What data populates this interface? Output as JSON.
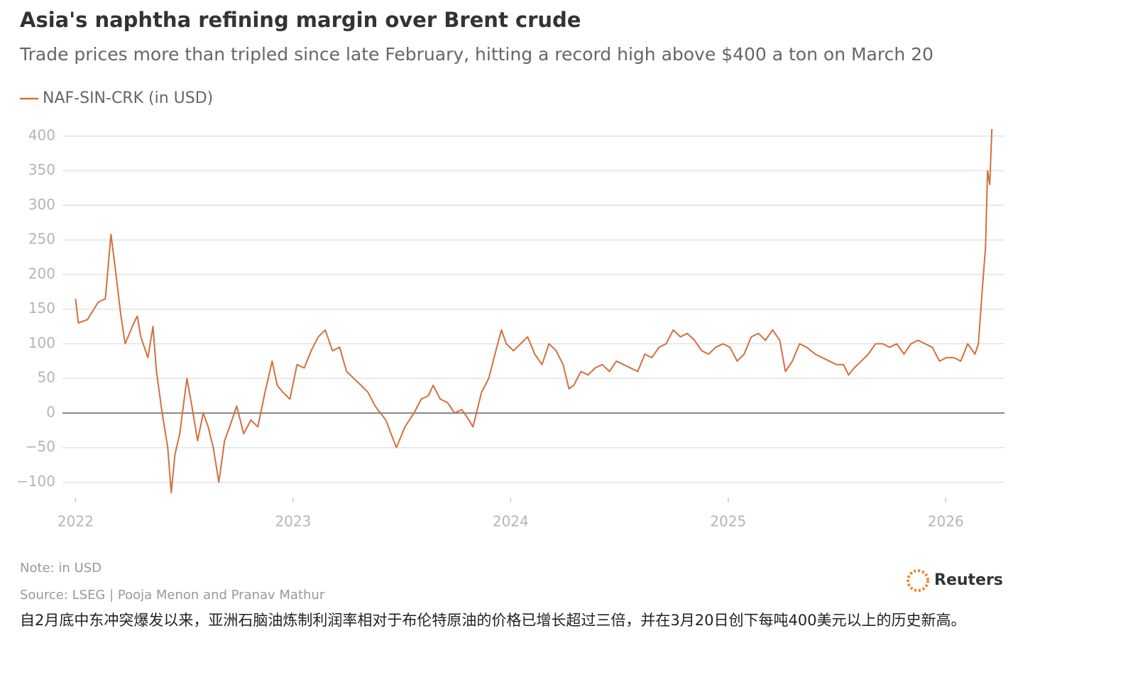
{
  "chart_data": {
    "type": "line",
    "title": "Asia's naphtha refining margin over Brent crude",
    "subtitle": "Trade prices more than tripled since late February, hitting a record high above $400 a ton on March 20",
    "note": "Note: in USD",
    "source": "Source: LSEG | Pooja Menon and Pranav Mathur",
    "logo": "Reuters",
    "caption": "自2月底中东冲突爆发以来，亚洲石脑油炼制利润率相对于布伦特原油的价格已增长超过三倍，并在3月20日创下每吨400美元以上的历史新高。",
    "x": [
      2022.0,
      2022.013,
      2022.055,
      2022.104,
      2022.137,
      2022.163,
      2022.186,
      2022.209,
      2022.228,
      2022.268,
      2022.284,
      2022.3,
      2022.333,
      2022.356,
      2022.372,
      2022.398,
      2022.424,
      2022.44,
      2022.457,
      2022.479,
      2022.512,
      2022.535,
      2022.561,
      2022.587,
      2022.61,
      2022.633,
      2022.659,
      2022.685,
      2022.708,
      2022.741,
      2022.773,
      2022.806,
      2022.838,
      2022.871,
      2022.904,
      2022.927,
      2022.953,
      2022.985,
      2023.018,
      2023.051,
      2023.083,
      2023.116,
      2023.148,
      2023.181,
      2023.214,
      2023.246,
      2023.279,
      2023.312,
      2023.344,
      2023.377,
      2023.426,
      2023.475,
      2023.514,
      2023.556,
      2023.589,
      2023.622,
      2023.644,
      2023.677,
      2023.71,
      2023.742,
      2023.775,
      2023.808,
      2023.827,
      2023.866,
      2023.899,
      2023.932,
      2023.958,
      2023.98,
      2024.013,
      2024.046,
      2024.078,
      2024.111,
      2024.144,
      2024.176,
      2024.209,
      2024.241,
      2024.268,
      2024.29,
      2024.323,
      2024.356,
      2024.388,
      2024.421,
      2024.454,
      2024.486,
      2024.519,
      2024.551,
      2024.584,
      2024.617,
      2024.649,
      2024.682,
      2024.715,
      2024.747,
      2024.78,
      2024.812,
      2024.845,
      2024.878,
      2024.91,
      2024.943,
      2024.976,
      2025.008,
      2025.041,
      2025.073,
      2025.106,
      2025.139,
      2025.171,
      2025.204,
      2025.237,
      2025.263,
      2025.295,
      2025.328,
      2025.361,
      2025.4,
      2025.432,
      2025.465,
      2025.498,
      2025.53,
      2025.553,
      2025.579,
      2025.612,
      2025.644,
      2025.677,
      2025.71,
      2025.742,
      2025.775,
      2025.808,
      2025.84,
      2025.873,
      2025.905,
      2025.938,
      2025.971,
      2026.003,
      2026.036,
      2026.069,
      2026.101,
      2026.134,
      2026.15,
      2026.166,
      2026.183,
      2026.192,
      2026.202,
      2026.212
    ],
    "series": [
      {
        "name": "NAF-SIN-CRK (in USD)",
        "color": "#d2703f",
        "values": [
          165,
          130,
          135,
          160,
          165,
          258,
          200,
          140,
          100,
          130,
          140,
          110,
          80,
          125,
          60,
          0,
          -50,
          -115,
          -60,
          -30,
          50,
          10,
          -40,
          0,
          -20,
          -50,
          -100,
          -40,
          -20,
          10,
          -30,
          -10,
          -20,
          30,
          75,
          40,
          30,
          20,
          70,
          65,
          90,
          110,
          120,
          90,
          95,
          60,
          50,
          40,
          30,
          10,
          -10,
          -50,
          -20,
          0,
          20,
          25,
          40,
          20,
          15,
          0,
          5,
          -10,
          -20,
          30,
          50,
          90,
          120,
          100,
          90,
          100,
          110,
          85,
          70,
          100,
          90,
          70,
          35,
          40,
          60,
          55,
          65,
          70,
          60,
          75,
          70,
          65,
          60,
          85,
          80,
          95,
          100,
          120,
          110,
          115,
          105,
          90,
          85,
          95,
          100,
          95,
          75,
          85,
          110,
          115,
          105,
          120,
          105,
          60,
          75,
          100,
          95,
          85,
          80,
          75,
          70,
          70,
          55,
          65,
          75,
          85,
          100,
          100,
          95,
          100,
          85,
          100,
          105,
          100,
          95,
          75,
          80,
          80,
          75,
          100,
          85,
          100,
          170,
          240,
          350,
          330,
          410
        ]
      }
    ],
    "xlim": [
      2021.94,
      2026.27
    ],
    "xticks": [
      2022,
      2023,
      2024,
      2025,
      2026
    ],
    "ylim": [
      -120,
      410
    ],
    "yticks": [
      {
        "value": -100,
        "label": "−100"
      },
      {
        "value": -50,
        "label": "−50"
      },
      0,
      50,
      100,
      150,
      200,
      250,
      300,
      350,
      400
    ],
    "grid": true,
    "legend": "top-left"
  }
}
